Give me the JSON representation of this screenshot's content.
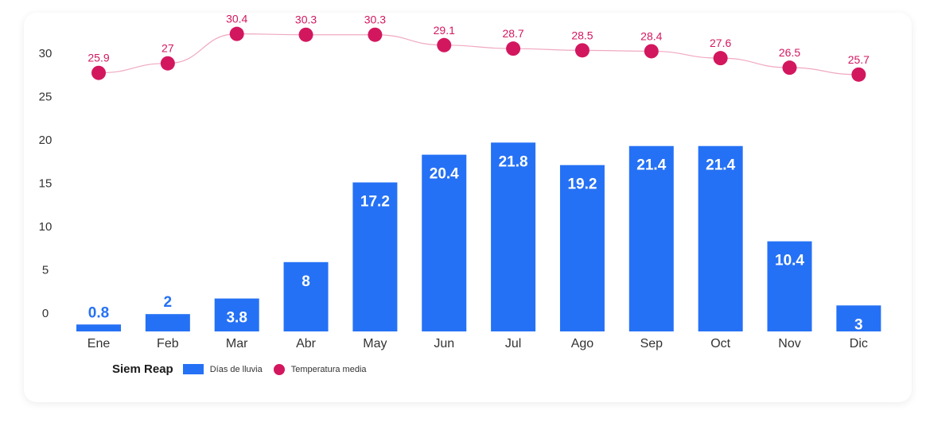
{
  "chart_data": {
    "type": "bar",
    "location": "Siem Reap",
    "categories": [
      "Ene",
      "Feb",
      "Mar",
      "Abr",
      "May",
      "Jun",
      "Jul",
      "Ago",
      "Sep",
      "Oct",
      "Nov",
      "Dic"
    ],
    "series": [
      {
        "name": "Días de lluvia",
        "type": "bar",
        "color": "#2571f5",
        "values": [
          0.8,
          2,
          3.8,
          8,
          17.2,
          20.4,
          21.8,
          19.2,
          21.4,
          21.4,
          10.4,
          3
        ]
      },
      {
        "name": "Temperatura media",
        "type": "line",
        "color": "#d3175f",
        "values": [
          25.9,
          27,
          30.4,
          30.3,
          30.3,
          29.1,
          28.7,
          28.5,
          28.4,
          27.6,
          26.5,
          25.7
        ]
      }
    ],
    "yticks": [
      0,
      5,
      10,
      15,
      20,
      25,
      30
    ],
    "ylim": [
      0,
      32
    ],
    "grid": false,
    "legend_position": "bottom-left"
  }
}
